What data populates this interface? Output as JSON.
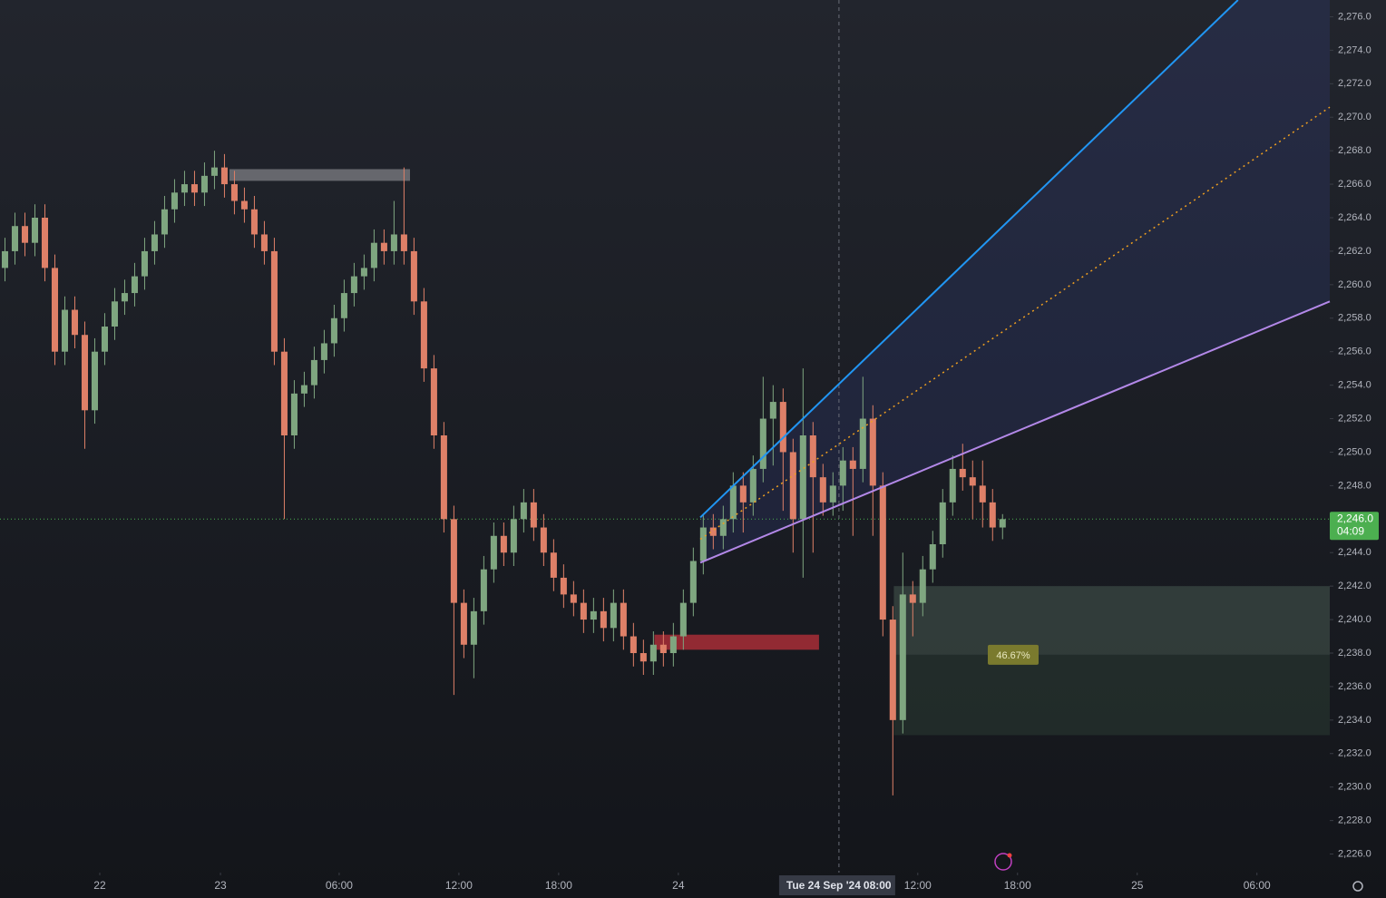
{
  "chart_data": {
    "type": "candlestick",
    "up_color": "#7fa680",
    "down_color": "#de8068",
    "xlim": [
      -0.5,
      132.8
    ],
    "ylim": [
      2225.0,
      2277.0
    ],
    "grid": false,
    "yticks": [
      {
        "value": 2226,
        "label": "2,226.0"
      },
      {
        "value": 2228,
        "label": "2,228.0"
      },
      {
        "value": 2230,
        "label": "2,230.0"
      },
      {
        "value": 2232,
        "label": "2,232.0"
      },
      {
        "value": 2234,
        "label": "2,234.0"
      },
      {
        "value": 2236,
        "label": "2,236.0"
      },
      {
        "value": 2238,
        "label": "2,238.0"
      },
      {
        "value": 2240,
        "label": "2,240.0"
      },
      {
        "value": 2242,
        "label": "2,242.0"
      },
      {
        "value": 2244,
        "label": "2,244.0"
      },
      {
        "value": 2246,
        "label": "2,246.0"
      },
      {
        "value": 2248,
        "label": "2,248.0"
      },
      {
        "value": 2250,
        "label": "2,250.0"
      },
      {
        "value": 2252,
        "label": "2,252.0"
      },
      {
        "value": 2254,
        "label": "2,254.0"
      },
      {
        "value": 2256,
        "label": "2,256.0"
      },
      {
        "value": 2258,
        "label": "2,258.0"
      },
      {
        "value": 2260,
        "label": "2,260.0"
      },
      {
        "value": 2262,
        "label": "2,262.0"
      },
      {
        "value": 2264,
        "label": "2,264.0"
      },
      {
        "value": 2266,
        "label": "2,266.0"
      },
      {
        "value": 2268,
        "label": "2,268.0"
      },
      {
        "value": 2270,
        "label": "2,270.0"
      },
      {
        "value": 2272,
        "label": "2,272.0"
      },
      {
        "value": 2274,
        "label": "2,274.0"
      },
      {
        "value": 2276,
        "label": "2,276.0"
      }
    ],
    "xticks": [
      {
        "value": 9.5,
        "label": "22"
      },
      {
        "value": 21.6,
        "label": "23"
      },
      {
        "value": 33.5,
        "label": "06:00"
      },
      {
        "value": 45.5,
        "label": "12:00"
      },
      {
        "value": 55.5,
        "label": "18:00"
      },
      {
        "value": 67.5,
        "label": "24"
      },
      {
        "value": 91.5,
        "label": "12:00"
      },
      {
        "value": 101.5,
        "label": "18:00"
      },
      {
        "value": 113.5,
        "label": "25"
      },
      {
        "value": 125.5,
        "label": "06:00"
      }
    ],
    "ohlc": [
      [
        2261.0,
        2262.8,
        2260.2,
        2262.0
      ],
      [
        2262.0,
        2264.3,
        2261.2,
        2263.5
      ],
      [
        2263.5,
        2264.3,
        2261.7,
        2262.5
      ],
      [
        2262.5,
        2264.8,
        2261.7,
        2264.0
      ],
      [
        2264.0,
        2264.8,
        2260.2,
        2261.0
      ],
      [
        2261.0,
        2261.8,
        2255.2,
        2256.0
      ],
      [
        2256.0,
        2259.3,
        2255.2,
        2258.5
      ],
      [
        2258.5,
        2259.3,
        2256.2,
        2257.0
      ],
      [
        2257.0,
        2257.8,
        2250.2,
        2252.5
      ],
      [
        2252.5,
        2256.8,
        2251.7,
        2256.0
      ],
      [
        2256.0,
        2258.3,
        2255.2,
        2257.5
      ],
      [
        2257.5,
        2259.8,
        2256.7,
        2259.0
      ],
      [
        2259.0,
        2260.3,
        2258.2,
        2259.5
      ],
      [
        2259.5,
        2261.3,
        2258.7,
        2260.5
      ],
      [
        2260.5,
        2262.8,
        2259.7,
        2262.0
      ],
      [
        2262.0,
        2263.8,
        2261.2,
        2263.0
      ],
      [
        2263.0,
        2265.3,
        2262.2,
        2264.5
      ],
      [
        2264.5,
        2266.3,
        2263.7,
        2265.5
      ],
      [
        2265.5,
        2266.8,
        2264.7,
        2266.0
      ],
      [
        2266.0,
        2266.8,
        2264.7,
        2265.5
      ],
      [
        2265.5,
        2267.3,
        2264.7,
        2266.5
      ],
      [
        2266.5,
        2268.0,
        2265.7,
        2267.0
      ],
      [
        2267.0,
        2267.8,
        2265.2,
        2266.0
      ],
      [
        2266.0,
        2266.8,
        2264.2,
        2265.0
      ],
      [
        2265.0,
        2265.8,
        2263.7,
        2264.5
      ],
      [
        2264.5,
        2265.3,
        2262.2,
        2263.0
      ],
      [
        2263.0,
        2263.8,
        2261.2,
        2262.0
      ],
      [
        2262.0,
        2262.8,
        2255.2,
        2256.0
      ],
      [
        2256.0,
        2256.8,
        2246.0,
        2251.0
      ],
      [
        2251.0,
        2254.3,
        2250.2,
        2253.5
      ],
      [
        2253.5,
        2254.8,
        2252.7,
        2254.0
      ],
      [
        2254.0,
        2256.3,
        2253.2,
        2255.5
      ],
      [
        2255.5,
        2257.3,
        2254.7,
        2256.5
      ],
      [
        2256.5,
        2258.8,
        2255.7,
        2258.0
      ],
      [
        2258.0,
        2260.3,
        2257.2,
        2259.5
      ],
      [
        2259.5,
        2261.3,
        2258.7,
        2260.5
      ],
      [
        2260.5,
        2261.8,
        2259.7,
        2261.0
      ],
      [
        2261.0,
        2263.3,
        2260.2,
        2262.5
      ],
      [
        2262.5,
        2263.3,
        2261.2,
        2262.0
      ],
      [
        2262.0,
        2265.0,
        2261.2,
        2263.0
      ],
      [
        2263.0,
        2267.0,
        2261.2,
        2262.0
      ],
      [
        2262.0,
        2262.8,
        2258.2,
        2259.0
      ],
      [
        2259.0,
        2259.8,
        2254.2,
        2255.0
      ],
      [
        2255.0,
        2255.8,
        2250.2,
        2251.0
      ],
      [
        2251.0,
        2251.8,
        2245.2,
        2246.0
      ],
      [
        2246.0,
        2246.8,
        2235.5,
        2241.0
      ],
      [
        2241.0,
        2241.8,
        2237.7,
        2238.5
      ],
      [
        2238.5,
        2241.3,
        2236.5,
        2240.5
      ],
      [
        2240.5,
        2243.8,
        2239.7,
        2243.0
      ],
      [
        2243.0,
        2245.8,
        2242.2,
        2245.0
      ],
      [
        2245.0,
        2245.8,
        2243.2,
        2244.0
      ],
      [
        2244.0,
        2246.8,
        2243.2,
        2246.0
      ],
      [
        2246.0,
        2247.8,
        2245.2,
        2247.0
      ],
      [
        2247.0,
        2247.8,
        2244.7,
        2245.5
      ],
      [
        2245.5,
        2246.3,
        2243.2,
        2244.0
      ],
      [
        2244.0,
        2244.8,
        2241.7,
        2242.5
      ],
      [
        2242.5,
        2243.3,
        2240.7,
        2241.5
      ],
      [
        2241.5,
        2242.3,
        2240.2,
        2241.0
      ],
      [
        2241.0,
        2241.8,
        2239.2,
        2240.0
      ],
      [
        2240.0,
        2241.3,
        2239.2,
        2240.5
      ],
      [
        2240.5,
        2241.3,
        2238.7,
        2239.5
      ],
      [
        2239.5,
        2241.8,
        2238.7,
        2241.0
      ],
      [
        2241.0,
        2241.8,
        2238.2,
        2239.0
      ],
      [
        2239.0,
        2239.8,
        2237.2,
        2238.0
      ],
      [
        2238.0,
        2238.8,
        2236.7,
        2237.5
      ],
      [
        2237.5,
        2239.3,
        2236.7,
        2238.5
      ],
      [
        2238.5,
        2239.3,
        2237.2,
        2238.0
      ],
      [
        2238.0,
        2239.8,
        2237.2,
        2239.0
      ],
      [
        2239.0,
        2241.8,
        2238.2,
        2241.0
      ],
      [
        2241.0,
        2244.3,
        2240.2,
        2243.5
      ],
      [
        2243.5,
        2246.3,
        2242.7,
        2245.5
      ],
      [
        2245.5,
        2246.3,
        2244.2,
        2245.0
      ],
      [
        2245.0,
        2246.8,
        2244.2,
        2246.0
      ],
      [
        2246.0,
        2248.8,
        2245.2,
        2248.0
      ],
      [
        2248.0,
        2248.8,
        2245.2,
        2247.0
      ],
      [
        2247.0,
        2249.8,
        2246.2,
        2249.0
      ],
      [
        2249.0,
        2254.5,
        2248.2,
        2252.0
      ],
      [
        2252.0,
        2254.0,
        2249.2,
        2253.0
      ],
      [
        2253.0,
        2253.8,
        2246.5,
        2250.0
      ],
      [
        2250.0,
        2250.8,
        2244.0,
        2246.0
      ],
      [
        2246.0,
        2255.0,
        2242.5,
        2251.0
      ],
      [
        2251.0,
        2251.8,
        2244.0,
        2248.5
      ],
      [
        2248.5,
        2249.3,
        2246.2,
        2247.0
      ],
      [
        2247.0,
        2248.8,
        2246.2,
        2248.0
      ],
      [
        2248.0,
        2250.3,
        2246.5,
        2249.5
      ],
      [
        2249.5,
        2250.3,
        2245.0,
        2249.0
      ],
      [
        2249.0,
        2254.5,
        2248.2,
        2252.0
      ],
      [
        2252.0,
        2252.8,
        2245.0,
        2248.0
      ],
      [
        2248.0,
        2248.8,
        2239.0,
        2240.0
      ],
      [
        2240.0,
        2240.8,
        2229.5,
        2234.0
      ],
      [
        2234.0,
        2244.0,
        2233.2,
        2241.5
      ],
      [
        2241.5,
        2242.3,
        2239.0,
        2241.0
      ],
      [
        2241.0,
        2243.8,
        2240.2,
        2243.0
      ],
      [
        2243.0,
        2245.3,
        2242.2,
        2244.5
      ],
      [
        2244.5,
        2247.8,
        2243.7,
        2247.0
      ],
      [
        2247.0,
        2249.8,
        2246.2,
        2249.0
      ],
      [
        2249.0,
        2250.5,
        2247.7,
        2248.5
      ],
      [
        2248.5,
        2249.5,
        2246.0,
        2248.0
      ],
      [
        2248.0,
        2249.5,
        2245.5,
        2247.0
      ],
      [
        2247.0,
        2247.8,
        2244.7,
        2245.5
      ],
      [
        2245.5,
        2246.3,
        2244.8,
        2246.0
      ]
    ],
    "fan": {
      "upper": [
        [
          69.7,
          2246.1
        ],
        [
          123.6,
          2277.0
        ]
      ],
      "upper_color": "#2196f3",
      "median": [
        [
          69.7,
          2244.8
        ],
        [
          132.8,
          2270.6
        ]
      ],
      "median_color": "#f0a020",
      "lower": [
        [
          69.7,
          2243.4
        ],
        [
          132.8,
          2259.0
        ]
      ],
      "lower_color": "#b388e8",
      "fill": "rgba(60,80,170,0.18)"
    },
    "zones": [
      {
        "x": [
          22.5,
          40.6
        ],
        "y": [
          2266.2,
          2266.9
        ],
        "color": "rgba(150,150,155,0.6)"
      },
      {
        "x": [
          65.1,
          81.6
        ],
        "y": [
          2238.2,
          2239.1
        ],
        "color": "rgba(200,50,60,0.7)"
      },
      {
        "x": [
          89.1,
          132.8
        ],
        "y": [
          2237.9,
          2242.0
        ],
        "color": "rgba(110,140,120,0.3)"
      },
      {
        "x": [
          89.1,
          132.8
        ],
        "y": [
          2233.1,
          2237.9
        ],
        "color": "rgba(60,90,70,0.3)"
      }
    ],
    "zone_label": "46.67%",
    "last_price": {
      "value": 2246.0,
      "label": "2,246.0"
    },
    "countdown": "04:09",
    "crosshair": {
      "x": 83.6,
      "date_label": "Tue 24 Sep '24",
      "time_label": "08:00"
    }
  }
}
